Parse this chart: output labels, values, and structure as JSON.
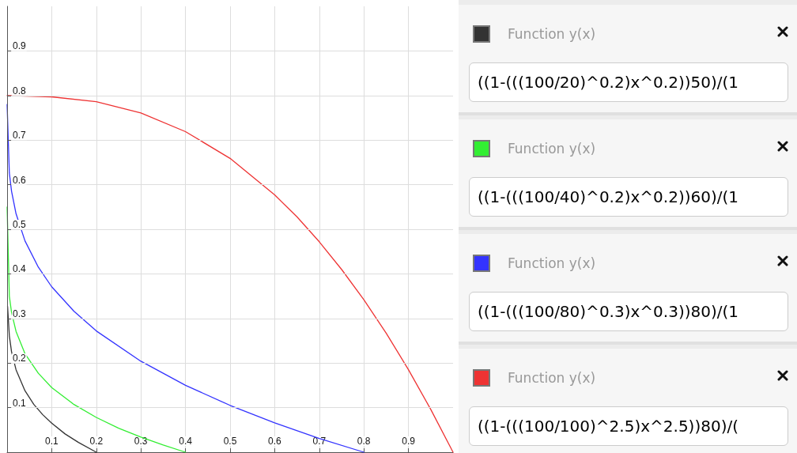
{
  "chart_data": [
    {
      "type": "line",
      "xlim": [
        0,
        1
      ],
      "ylim": [
        0,
        1
      ],
      "xticks": [
        0.1,
        0.2,
        0.3,
        0.4,
        0.5,
        0.6,
        0.7,
        0.8,
        0.9
      ],
      "yticks": [
        0.1,
        0.2,
        0.3,
        0.4,
        0.5,
        0.6,
        0.7,
        0.8,
        0.9
      ],
      "grid": true,
      "marker": "none",
      "line_style": "solid",
      "series": [
        {
          "color": "#333333",
          "x": [
            0.001,
            0.005,
            0.01,
            0.02,
            0.04,
            0.06,
            0.08,
            0.1,
            0.13,
            0.16,
            0.2
          ],
          "values": [
            0.327,
            0.261,
            0.225,
            0.185,
            0.138,
            0.107,
            0.084,
            0.065,
            0.041,
            0.022,
            0
          ]
        },
        {
          "color": "#33ee33",
          "x": [
            0,
            0.005,
            0.01,
            0.02,
            0.04,
            0.07,
            0.1,
            0.15,
            0.2,
            0.25,
            0.3,
            0.35,
            0.4
          ],
          "values": [
            0.55,
            0.35,
            0.313,
            0.271,
            0.221,
            0.177,
            0.145,
            0.107,
            0.078,
            0.054,
            0.034,
            0.016,
            0
          ]
        },
        {
          "color": "#3333ff",
          "x": [
            0,
            0.005,
            0.01,
            0.02,
            0.04,
            0.07,
            0.1,
            0.15,
            0.2,
            0.3,
            0.4,
            0.5,
            0.6,
            0.7,
            0.8
          ],
          "values": [
            0.78,
            0.626,
            0.585,
            0.535,
            0.474,
            0.415,
            0.371,
            0.316,
            0.272,
            0.204,
            0.15,
            0.105,
            0.066,
            0.031,
            0
          ]
        },
        {
          "color": "#ee3333",
          "x": [
            0,
            0.1,
            0.2,
            0.3,
            0.4,
            0.5,
            0.6,
            0.65,
            0.7,
            0.75,
            0.8,
            0.85,
            0.9,
            0.95,
            1
          ],
          "values": [
            0.8,
            0.797,
            0.786,
            0.761,
            0.719,
            0.659,
            0.577,
            0.528,
            0.472,
            0.41,
            0.342,
            0.267,
            0.185,
            0.096,
            0
          ]
        }
      ]
    },
    {
      "type": "other",
      "annotations": [
        "Function y(x)",
        "((1-(((100/20)^0.2)x^0.2))50)/(1",
        "Function y(x)",
        "((1-(((100/40)^0.2)x^0.2))60)/(1",
        "Function y(x)",
        "((1-(((100/80)^0.3)x^0.3))80)/(1",
        "Function y(x)",
        "((1-(((100/100)^2.5)x^2.5))80)/("
      ]
    }
  ]
}
